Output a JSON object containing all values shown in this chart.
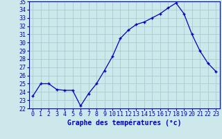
{
  "hours": [
    0,
    1,
    2,
    3,
    4,
    5,
    6,
    7,
    8,
    9,
    10,
    11,
    12,
    13,
    14,
    15,
    16,
    17,
    18,
    19,
    20,
    21,
    22,
    23
  ],
  "temps": [
    23.5,
    25.0,
    25.0,
    24.3,
    24.2,
    24.2,
    22.3,
    23.8,
    25.0,
    26.6,
    28.3,
    30.5,
    31.5,
    32.2,
    32.5,
    33.0,
    33.5,
    34.2,
    34.8,
    33.5,
    31.0,
    29.0,
    27.5,
    26.5
  ],
  "line_color": "#0000bb",
  "marker": "+",
  "bg_color": "#cce8ea",
  "grid_color": "#aaccce",
  "xlabel": "Graphe des températures (°c)",
  "xlabel_color": "#0000bb",
  "xlabel_fontsize": 7,
  "tick_color": "#0000bb",
  "tick_fontsize": 6,
  "ylim": [
    22,
    35
  ],
  "yticks": [
    22,
    23,
    24,
    25,
    26,
    27,
    28,
    29,
    30,
    31,
    32,
    33,
    34,
    35
  ],
  "xlim": [
    -0.5,
    23.5
  ]
}
